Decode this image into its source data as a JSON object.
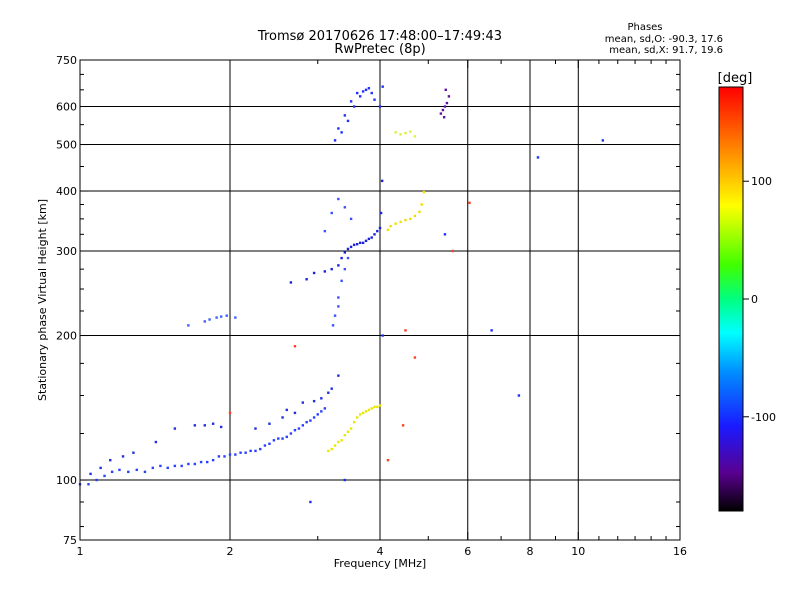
{
  "chart_data": {
    "type": "scatter",
    "title": "Tromsø 20170626 17:48:00–17:49:43",
    "subtitle": "RwPretec (8p)",
    "xlabel": "Frequency [MHz]",
    "ylabel": "Stationary phase Virtual Height [km]",
    "xscale": "log",
    "yscale": "log",
    "xlim": [
      1,
      16
    ],
    "ylim": [
      75,
      750
    ],
    "xticks": [
      1,
      2,
      4,
      6,
      8,
      10,
      16
    ],
    "xminor": [
      3,
      5,
      7,
      9,
      11,
      12,
      13,
      14,
      15
    ],
    "yticks": [
      75,
      100,
      200,
      300,
      400,
      500,
      600,
      750
    ],
    "yminor": [
      80,
      90,
      125,
      150,
      175,
      225,
      250,
      275,
      325,
      350,
      375,
      450,
      550,
      650,
      700
    ],
    "xgrid": [
      2,
      4,
      6,
      8,
      10
    ],
    "ygrid": [
      100,
      200,
      300,
      400,
      500,
      600
    ],
    "phase_stats": {
      "heading": "Phases",
      "line_o": "mean, sd,O: -90.3, 17.6",
      "line_x": "mean, sd,X:  91.7, 19.6"
    },
    "colorbar": {
      "label": "[deg]",
      "range": [
        -180,
        180
      ],
      "ticks": [
        100,
        0,
        -100
      ]
    },
    "point_groups": [
      {
        "name": "o-trace-base",
        "color": "#2a40ff",
        "x": [
          1.0,
          1.04,
          1.08,
          1.12,
          1.16,
          1.2,
          1.25,
          1.3,
          1.35,
          1.4,
          1.45,
          1.5,
          1.55,
          1.6,
          1.65,
          1.7,
          1.75,
          1.8,
          1.85,
          1.9,
          1.95,
          2.0,
          2.05,
          2.1,
          2.15,
          2.2,
          2.25,
          2.3,
          2.35,
          2.4,
          2.45,
          2.5,
          2.55,
          2.6,
          2.65,
          2.7,
          2.75,
          2.8,
          2.85,
          2.9,
          2.95,
          3.0,
          3.05,
          3.1
        ],
        "y": [
          98,
          98,
          100,
          102,
          104,
          105,
          104,
          105,
          104,
          106,
          107,
          106,
          107,
          107,
          108,
          108,
          109,
          109,
          110,
          112,
          112,
          113,
          113,
          114,
          114,
          115,
          115,
          116,
          118,
          119,
          121,
          122,
          122,
          123,
          125,
          127,
          128,
          130,
          132,
          133,
          135,
          137,
          139,
          141
        ]
      },
      {
        "name": "o-trace-scatter",
        "color": "#2030e0",
        "x": [
          1.05,
          1.1,
          1.15,
          1.22,
          1.28,
          1.42,
          1.55,
          1.7,
          1.78,
          1.85,
          1.92,
          2.25,
          2.4,
          2.55,
          2.6,
          2.7,
          2.8,
          2.95,
          3.05,
          3.15,
          3.2,
          3.3
        ],
        "y": [
          103,
          106,
          110,
          112,
          114,
          120,
          128,
          130,
          130,
          131,
          129,
          128,
          131,
          135,
          140,
          138,
          145,
          146,
          148,
          152,
          155,
          165
        ]
      },
      {
        "name": "mid-layer",
        "color": "#4060ff",
        "x": [
          1.65,
          1.78,
          1.82,
          1.88,
          1.92,
          1.97,
          2.05
        ],
        "y": [
          210,
          214,
          216,
          218,
          219,
          220,
          218
        ]
      },
      {
        "name": "f-layer-o-trace",
        "color": "#1a22e0",
        "x": [
          2.65,
          2.85,
          2.95,
          3.1,
          3.2,
          3.3,
          3.35,
          3.4,
          3.45,
          3.5,
          3.55,
          3.6,
          3.65,
          3.7,
          3.75,
          3.8,
          3.85,
          3.9,
          3.95,
          4.0,
          4.02,
          4.04
        ],
        "y": [
          258,
          262,
          270,
          272,
          275,
          280,
          290,
          298,
          303,
          306,
          309,
          310,
          312,
          312,
          315,
          318,
          320,
          325,
          330,
          335,
          360,
          420
        ]
      },
      {
        "name": "f-layer-spread",
        "color": "#3a50ff",
        "x": [
          3.1,
          3.2,
          3.3,
          3.4,
          3.5,
          3.3,
          3.25,
          3.22,
          3.3,
          3.35,
          3.4,
          3.45
        ],
        "y": [
          330,
          360,
          385,
          370,
          350,
          240,
          220,
          210,
          230,
          260,
          275,
          290
        ]
      },
      {
        "name": "top-cluster",
        "color": "#2030ff",
        "x": [
          3.25,
          3.35,
          3.45,
          3.55,
          3.65,
          3.75,
          3.85,
          3.3,
          3.4,
          3.5,
          3.6,
          3.7,
          3.8,
          3.9,
          4.0,
          4.05
        ],
        "y": [
          510,
          530,
          560,
          600,
          630,
          650,
          640,
          540,
          575,
          615,
          640,
          645,
          655,
          620,
          600,
          660
        ]
      },
      {
        "name": "x-trace-low",
        "color": "#e8e800",
        "x": [
          3.15,
          3.2,
          3.25,
          3.3,
          3.35,
          3.4,
          3.45,
          3.5,
          3.55,
          3.6,
          3.65,
          3.7,
          3.75,
          3.8,
          3.85,
          3.9,
          3.95,
          4.0
        ],
        "y": [
          115,
          116,
          118,
          120,
          121,
          124,
          126,
          128,
          132,
          135,
          137,
          138,
          139,
          140,
          141,
          142,
          142,
          143
        ]
      },
      {
        "name": "x-trace-f",
        "color": "#f0e000",
        "x": [
          4.15,
          4.2,
          4.3,
          4.4,
          4.5,
          4.6,
          4.7,
          4.8,
          4.85,
          4.9
        ],
        "y": [
          332,
          338,
          342,
          345,
          348,
          350,
          355,
          362,
          375,
          398
        ]
      },
      {
        "name": "x-trace-top",
        "color": "#e0f040",
        "x": [
          4.3,
          4.4,
          4.5,
          4.6,
          4.7
        ],
        "y": [
          530,
          525,
          528,
          532,
          520
        ]
      },
      {
        "name": "purple-cluster",
        "color": "#6010a0",
        "x": [
          5.3,
          5.35,
          5.4,
          5.45,
          5.5,
          5.38,
          5.42
        ],
        "y": [
          580,
          590,
          600,
          610,
          630,
          570,
          650
        ]
      },
      {
        "name": "scattered-mixed",
        "color": "#ff4020",
        "x": [
          4.5,
          4.7,
          6.05,
          2.0,
          2.7,
          4.15,
          4.45,
          5.6
        ],
        "y": [
          205,
          180,
          378,
          138,
          190,
          110,
          130,
          300
        ]
      },
      {
        "name": "isolated-points",
        "color": "#1a30ff",
        "x": [
          6.7,
          7.6,
          8.3,
          11.2,
          4.05,
          5.4,
          3.4,
          2.9
        ],
        "y": [
          205,
          150,
          470,
          510,
          200,
          325,
          100,
          90
        ]
      }
    ]
  }
}
